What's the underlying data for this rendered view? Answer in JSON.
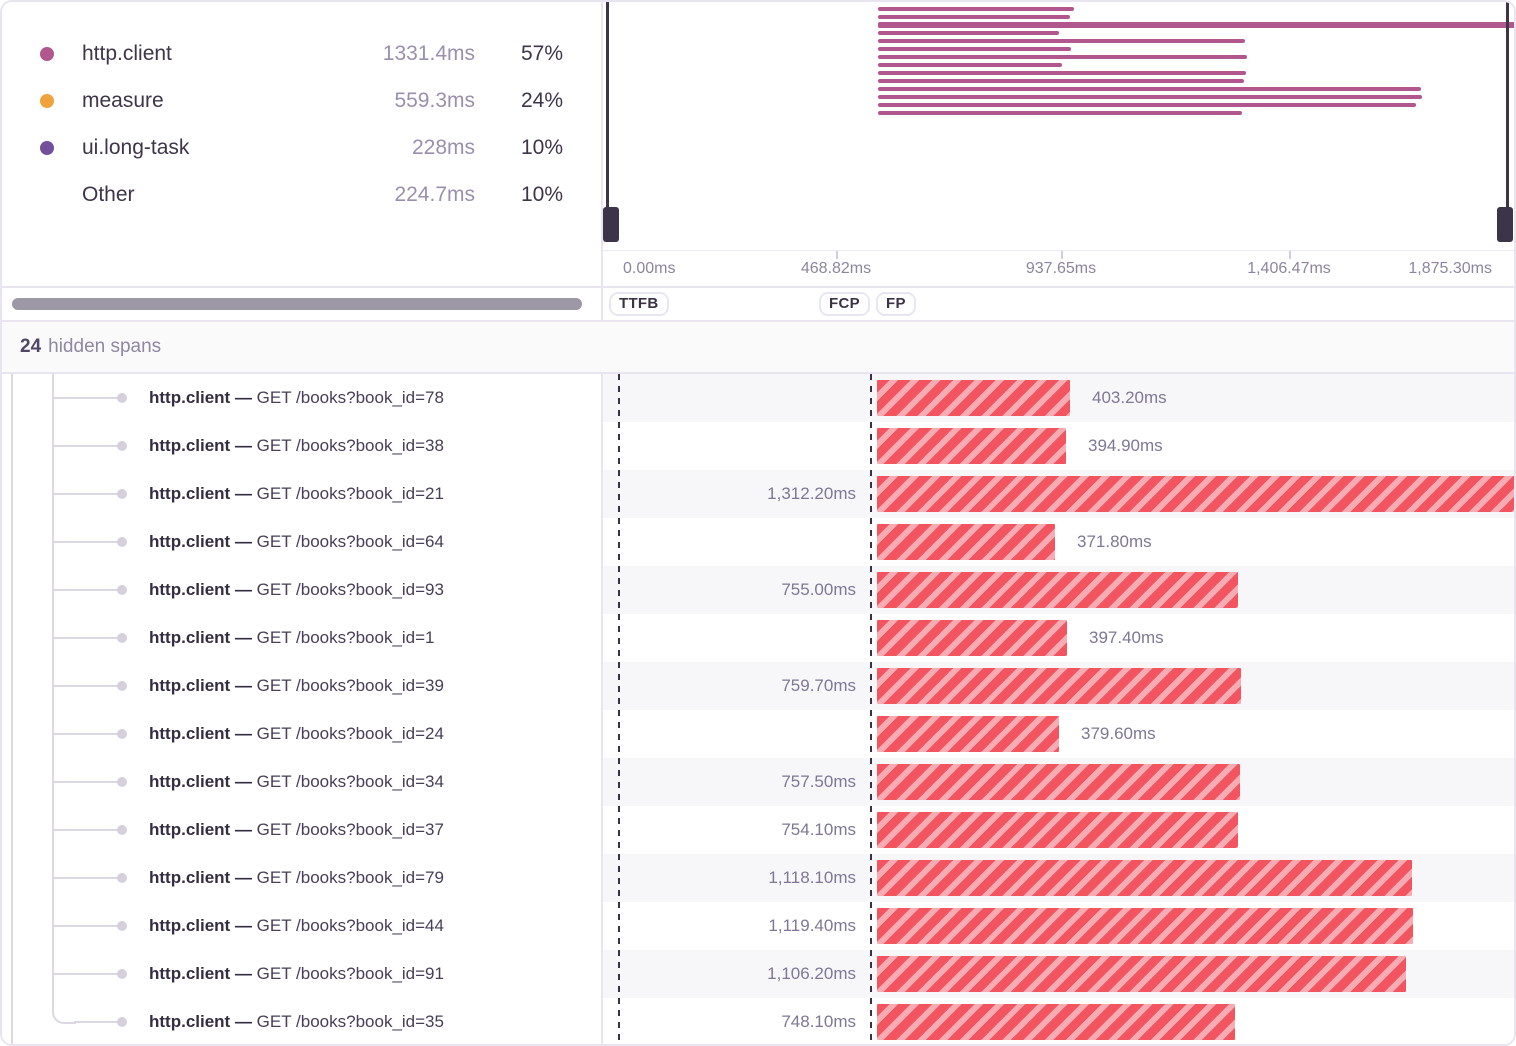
{
  "legend": {
    "items": [
      {
        "key": "http-client",
        "label": "http.client",
        "duration": "1331.4ms",
        "percent": "57%",
        "dot_color": "#b2578e"
      },
      {
        "key": "measure",
        "label": "measure",
        "duration": "559.3ms",
        "percent": "24%",
        "dot_color": "#f0a23c"
      },
      {
        "key": "ui-long-task",
        "label": "ui.long-task",
        "duration": "228ms",
        "percent": "10%",
        "dot_color": "#744f9b"
      },
      {
        "key": "other",
        "label": "Other",
        "duration": "224.7ms",
        "percent": "10%",
        "dot_color": null
      }
    ]
  },
  "axis": {
    "labels": [
      "0.00ms",
      "468.82ms",
      "937.65ms",
      "1,406.47ms",
      "1,875.30ms"
    ]
  },
  "vitals": [
    {
      "key": "ttfb",
      "label": "TTFB"
    },
    {
      "key": "fcp",
      "label": "FCP"
    },
    {
      "key": "fp",
      "label": "FP"
    }
  ],
  "hidden_spans": {
    "count": "24",
    "label": "hidden spans"
  },
  "spans": [
    {
      "op": "http.client",
      "separator": "—",
      "description": "GET /books?book_id=78",
      "duration_ms": 403.2,
      "duration_label": "403.20ms",
      "label_side": "right"
    },
    {
      "op": "http.client",
      "separator": "—",
      "description": "GET /books?book_id=38",
      "duration_ms": 394.9,
      "duration_label": "394.90ms",
      "label_side": "right"
    },
    {
      "op": "http.client",
      "separator": "—",
      "description": "GET /books?book_id=21",
      "duration_ms": 1312.2,
      "duration_label": "1,312.20ms",
      "label_side": "left"
    },
    {
      "op": "http.client",
      "separator": "—",
      "description": "GET /books?book_id=64",
      "duration_ms": 371.8,
      "duration_label": "371.80ms",
      "label_side": "right"
    },
    {
      "op": "http.client",
      "separator": "—",
      "description": "GET /books?book_id=93",
      "duration_ms": 755.0,
      "duration_label": "755.00ms",
      "label_side": "left"
    },
    {
      "op": "http.client",
      "separator": "—",
      "description": "GET /books?book_id=1",
      "duration_ms": 397.4,
      "duration_label": "397.40ms",
      "label_side": "right"
    },
    {
      "op": "http.client",
      "separator": "—",
      "description": "GET /books?book_id=39",
      "duration_ms": 759.7,
      "duration_label": "759.70ms",
      "label_side": "left"
    },
    {
      "op": "http.client",
      "separator": "—",
      "description": "GET /books?book_id=24",
      "duration_ms": 379.6,
      "duration_label": "379.60ms",
      "label_side": "right"
    },
    {
      "op": "http.client",
      "separator": "—",
      "description": "GET /books?book_id=34",
      "duration_ms": 757.5,
      "duration_label": "757.50ms",
      "label_side": "left"
    },
    {
      "op": "http.client",
      "separator": "—",
      "description": "GET /books?book_id=37",
      "duration_ms": 754.1,
      "duration_label": "754.10ms",
      "label_side": "left"
    },
    {
      "op": "http.client",
      "separator": "—",
      "description": "GET /books?book_id=79",
      "duration_ms": 1118.1,
      "duration_label": "1,118.10ms",
      "label_side": "left"
    },
    {
      "op": "http.client",
      "separator": "—",
      "description": "GET /books?book_id=44",
      "duration_ms": 1119.4,
      "duration_label": "1,119.40ms",
      "label_side": "left"
    },
    {
      "op": "http.client",
      "separator": "—",
      "description": "GET /books?book_id=91",
      "duration_ms": 1106.2,
      "duration_label": "1,106.20ms",
      "label_side": "left"
    },
    {
      "op": "http.client",
      "separator": "—",
      "description": "GET /books?book_id=35",
      "duration_ms": 748.1,
      "duration_label": "748.10ms",
      "label_side": "left"
    }
  ],
  "colors": {
    "span_bar_red": "#f25460",
    "span_bar_red_light": "#f8abb2",
    "minimap_bar": "#b2578e",
    "viewport_handle": "#3c3449",
    "row_alt_background": "#f7f7fa"
  }
}
